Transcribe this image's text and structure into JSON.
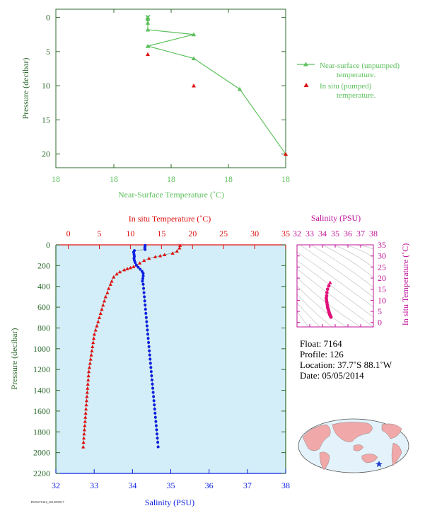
{
  "chart_data": [
    {
      "type": "line",
      "id": "near-surface",
      "xlabel": "Near-Surface Temperature (˚C)",
      "ylabel": "Pressure (decibar)",
      "x_tick_labels": [
        "18",
        "18",
        "18",
        "18"
      ],
      "y_tick_labels": [
        "0",
        "5",
        "10",
        "15",
        "20"
      ],
      "ylim": [
        22,
        -1.2
      ],
      "xlim": [
        17.4,
        18.4
      ],
      "y_inverted": true,
      "grid": false,
      "legend_position": "right",
      "series": [
        {
          "name": "Near-surface (unpumped) temperature.",
          "color": "#5cc05c",
          "marker": "triangle",
          "points": [
            {
              "x": 17.8,
              "y": 0.0
            },
            {
              "x": 17.8,
              "y": 0.3
            },
            {
              "x": 17.8,
              "y": 0.8
            },
            {
              "x": 17.8,
              "y": 1.8
            },
            {
              "x": 18.0,
              "y": 2.5
            },
            {
              "x": 17.8,
              "y": 4.2
            },
            {
              "x": 18.0,
              "y": 6.0
            },
            {
              "x": 18.2,
              "y": 10.5
            },
            {
              "x": 18.4,
              "y": 20.0
            }
          ]
        },
        {
          "name": "In situ (pumped) temperature.",
          "color": "#e01010",
          "marker": "triangle",
          "points": [
            {
              "x": 17.8,
              "y": 5.4
            },
            {
              "x": 18.0,
              "y": 10.0
            },
            {
              "x": 18.4,
              "y": 20.0
            }
          ]
        }
      ]
    },
    {
      "type": "line",
      "id": "profile",
      "ylabel": "Pressure (decibar)",
      "x_bottom_label": "Salinity (PSU)",
      "x_top_label": "In situ Temperature (˚C)",
      "ylim": [
        2200,
        0
      ],
      "salinity_lim": [
        32,
        38
      ],
      "temperature_lim": [
        -2,
        35
      ],
      "y_ticks": [
        0,
        200,
        400,
        600,
        800,
        1000,
        1200,
        1400,
        1600,
        1800,
        2000,
        2200
      ],
      "salinity_ticks": [
        32,
        33,
        34,
        35,
        36,
        37,
        38
      ],
      "temperature_ticks": [
        0,
        5,
        10,
        15,
        20,
        25,
        30,
        35
      ],
      "background": "#d3eef8",
      "series": [
        {
          "name": "In situ Temperature",
          "axis": "top",
          "color": "#e01010",
          "marker": "triangle",
          "points": [
            [
              18.0,
              5
            ],
            [
              17.9,
              30
            ],
            [
              17.5,
              60
            ],
            [
              16.8,
              80
            ],
            [
              15.5,
              95
            ],
            [
              14.8,
              105
            ],
            [
              14.0,
              115
            ],
            [
              13.0,
              130
            ],
            [
              12.2,
              150
            ],
            [
              11.5,
              175
            ],
            [
              11.0,
              195
            ],
            [
              10.5,
              210
            ],
            [
              10.0,
              220
            ],
            [
              9.5,
              230
            ],
            [
              9.0,
              240
            ],
            [
              8.3,
              260
            ],
            [
              7.8,
              280
            ],
            [
              7.3,
              310
            ],
            [
              7.0,
              350
            ],
            [
              6.8,
              380
            ],
            [
              6.5,
              420
            ],
            [
              6.3,
              460
            ],
            [
              6.0,
              500
            ],
            [
              5.8,
              540
            ],
            [
              5.6,
              580
            ],
            [
              5.4,
              620
            ],
            [
              5.2,
              660
            ],
            [
              5.0,
              700
            ],
            [
              4.8,
              740
            ],
            [
              4.6,
              780
            ],
            [
              4.4,
              820
            ],
            [
              4.2,
              860
            ],
            [
              4.1,
              900
            ],
            [
              4.0,
              940
            ],
            [
              3.9,
              980
            ],
            [
              3.8,
              1020
            ],
            [
              3.7,
              1060
            ],
            [
              3.6,
              1100
            ],
            [
              3.5,
              1140
            ],
            [
              3.4,
              1180
            ],
            [
              3.3,
              1220
            ],
            [
              3.25,
              1260
            ],
            [
              3.2,
              1300
            ],
            [
              3.15,
              1340
            ],
            [
              3.1,
              1380
            ],
            [
              3.05,
              1420
            ],
            [
              3.0,
              1460
            ],
            [
              2.95,
              1500
            ],
            [
              2.9,
              1540
            ],
            [
              2.85,
              1580
            ],
            [
              2.8,
              1620
            ],
            [
              2.75,
              1660
            ],
            [
              2.7,
              1700
            ],
            [
              2.65,
              1740
            ],
            [
              2.6,
              1780
            ],
            [
              2.55,
              1820
            ],
            [
              2.5,
              1860
            ],
            [
              2.45,
              1900
            ],
            [
              2.4,
              1945
            ]
          ]
        },
        {
          "name": "Salinity",
          "axis": "bottom",
          "color": "#0a1ee0",
          "marker": "circle",
          "points": [
            [
              34.33,
              5
            ],
            [
              34.33,
              15
            ],
            [
              34.32,
              30
            ],
            [
              34.33,
              45
            ],
            [
              34.05,
              55
            ],
            [
              34.03,
              70
            ],
            [
              34.04,
              90
            ],
            [
              34.05,
              110
            ],
            [
              34.04,
              130
            ],
            [
              34.05,
              150
            ],
            [
              34.07,
              170
            ],
            [
              34.1,
              195
            ],
            [
              34.15,
              215
            ],
            [
              34.2,
              235
            ],
            [
              34.25,
              255
            ],
            [
              34.28,
              275
            ],
            [
              34.28,
              300
            ],
            [
              34.27,
              325
            ],
            [
              34.26,
              350
            ],
            [
              34.28,
              380
            ],
            [
              34.29,
              420
            ],
            [
              34.3,
              460
            ],
            [
              34.31,
              500
            ],
            [
              34.32,
              540
            ],
            [
              34.33,
              580
            ],
            [
              34.34,
              620
            ],
            [
              34.35,
              660
            ],
            [
              34.36,
              700
            ],
            [
              34.37,
              740
            ],
            [
              34.38,
              780
            ],
            [
              34.39,
              820
            ],
            [
              34.4,
              860
            ],
            [
              34.41,
              900
            ],
            [
              34.42,
              940
            ],
            [
              34.43,
              980
            ],
            [
              34.44,
              1020
            ],
            [
              34.45,
              1060
            ],
            [
              34.46,
              1100
            ],
            [
              34.47,
              1140
            ],
            [
              34.48,
              1180
            ],
            [
              34.49,
              1220
            ],
            [
              34.5,
              1260
            ],
            [
              34.51,
              1300
            ],
            [
              34.52,
              1340
            ],
            [
              34.53,
              1380
            ],
            [
              34.54,
              1420
            ],
            [
              34.55,
              1460
            ],
            [
              34.56,
              1500
            ],
            [
              34.57,
              1540
            ],
            [
              34.58,
              1580
            ],
            [
              34.59,
              1620
            ],
            [
              34.6,
              1660
            ],
            [
              34.61,
              1700
            ],
            [
              34.62,
              1740
            ],
            [
              34.63,
              1780
            ],
            [
              34.64,
              1820
            ],
            [
              34.65,
              1860
            ],
            [
              34.66,
              1900
            ],
            [
              34.67,
              1945
            ]
          ]
        }
      ]
    },
    {
      "type": "scatter",
      "id": "ts-diagram",
      "title": "Salinity (PSU)",
      "ylabel": "In situ Temperature (˚C)",
      "x_ticks": [
        32,
        33,
        34,
        35,
        36,
        37,
        38
      ],
      "y_ticks": [
        0,
        5,
        10,
        15,
        20,
        25,
        30,
        35
      ],
      "xlim": [
        32,
        38
      ],
      "ylim": [
        -2,
        35
      ],
      "color": "#e0107a",
      "points": [
        [
          34.6,
          18.0
        ],
        [
          34.5,
          16.5
        ],
        [
          34.4,
          15.0
        ],
        [
          34.35,
          13.5
        ],
        [
          34.33,
          12.0
        ],
        [
          34.3,
          11.0
        ],
        [
          34.32,
          10.0
        ],
        [
          34.35,
          9.0
        ],
        [
          34.38,
          8.0
        ],
        [
          34.4,
          7.0
        ],
        [
          34.42,
          6.5
        ],
        [
          34.45,
          6.0
        ],
        [
          34.48,
          5.5
        ],
        [
          34.5,
          5.0
        ],
        [
          34.52,
          4.5
        ],
        [
          34.55,
          4.0
        ],
        [
          34.58,
          3.5
        ],
        [
          34.6,
          3.2
        ],
        [
          34.62,
          3.0
        ],
        [
          34.65,
          2.7
        ],
        [
          34.67,
          2.4
        ]
      ]
    }
  ],
  "float_info": {
    "float": "Float:  7164",
    "profile": "Profile:  126",
    "location": "Location:  37.7˚S  88.1˚W",
    "date": "Date:  05/05/2014"
  },
  "footer_code": "P0016T0164_2014050517"
}
